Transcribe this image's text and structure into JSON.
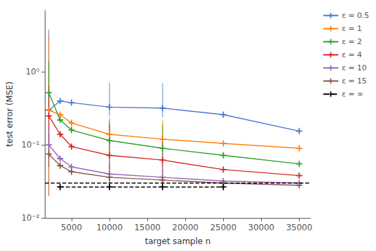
{
  "chart_data": {
    "type": "line",
    "xlabel": "target sample n",
    "ylabel": "test error (MSE)",
    "x": [
      2000,
      3500,
      5000,
      10000,
      17000,
      25000,
      35000
    ],
    "marker": "+",
    "series": [
      {
        "name": "ε = 0.5",
        "color": "#4878cf",
        "values": [
          0.3,
          0.4,
          0.38,
          0.33,
          0.32,
          0.26,
          0.155
        ],
        "err_x": [
          2000,
          10000,
          17000
        ],
        "err_minus": [
          0.28,
          0.08,
          0.08
        ],
        "err_plus": [
          3.5,
          0.38,
          0.38
        ]
      },
      {
        "name": "ε = 1",
        "color": "#ff7f0e",
        "values": [
          0.3,
          0.26,
          0.2,
          0.14,
          0.12,
          0.105,
          0.09
        ],
        "err_x": [
          2000,
          10000,
          17000
        ],
        "err_minus": [
          0.28,
          0.04,
          0.04
        ],
        "err_plus": [
          3.0,
          0.1,
          0.1
        ]
      },
      {
        "name": "ε = 2",
        "color": "#2ca02c",
        "values": [
          0.52,
          0.22,
          0.16,
          0.115,
          0.09,
          0.072,
          0.055
        ],
        "err_x": [
          2000,
          10000,
          17000
        ],
        "err_minus": [
          0.2,
          0.04,
          0.04
        ],
        "err_plus": [
          0.9,
          0.1,
          0.1
        ]
      },
      {
        "name": "ε = 4",
        "color": "#d62728",
        "values": [
          0.25,
          0.14,
          0.095,
          0.072,
          0.062,
          0.046,
          0.038
        ],
        "err_x": [
          2000,
          10000,
          17000
        ],
        "err_minus": [
          0.1,
          0.025,
          0.02
        ],
        "err_plus": [
          0.4,
          0.12,
          0.07
        ]
      },
      {
        "name": "ε = 10",
        "color": "#9467bd",
        "values": [
          0.1,
          0.065,
          0.05,
          0.04,
          0.036,
          0.032,
          0.03
        ],
        "err_x": [
          2000,
          10000,
          17000
        ],
        "err_minus": [
          0.035,
          0.01,
          0.008
        ],
        "err_plus": [
          0.09,
          0.025,
          0.015
        ]
      },
      {
        "name": "ε = 15",
        "color": "#8c564b",
        "values": [
          0.075,
          0.052,
          0.043,
          0.036,
          0.033,
          0.03,
          0.028
        ],
        "err_x": [
          2000,
          10000,
          17000
        ],
        "err_minus": [
          0.025,
          0.008,
          0.006
        ],
        "err_plus": [
          0.07,
          0.018,
          0.012
        ]
      },
      {
        "name": "ε = ∞",
        "type": "hline",
        "color": "black",
        "line_style": "dashed",
        "y": 0.0265,
        "err_x": [
          3500,
          10000,
          17000,
          25000
        ],
        "err_minus": [
          0.002,
          0.002,
          0.002,
          0.002
        ],
        "err_plus": [
          0.002,
          0.002,
          0.002,
          0.002
        ]
      }
    ],
    "log": "y",
    "xlim": [
      1500,
      36500
    ],
    "ylim": [
      0.01,
      7.0
    ],
    "xticks": [
      5000,
      10000,
      15000,
      20000,
      25000,
      30000,
      35000
    ],
    "yticks": [
      {
        "value": 0.01,
        "label": "10⁻²"
      },
      {
        "value": 0.1,
        "label": "10⁻¹"
      },
      {
        "value": 1,
        "label": "10⁰"
      }
    ],
    "grid": false,
    "legend": "upper right"
  }
}
